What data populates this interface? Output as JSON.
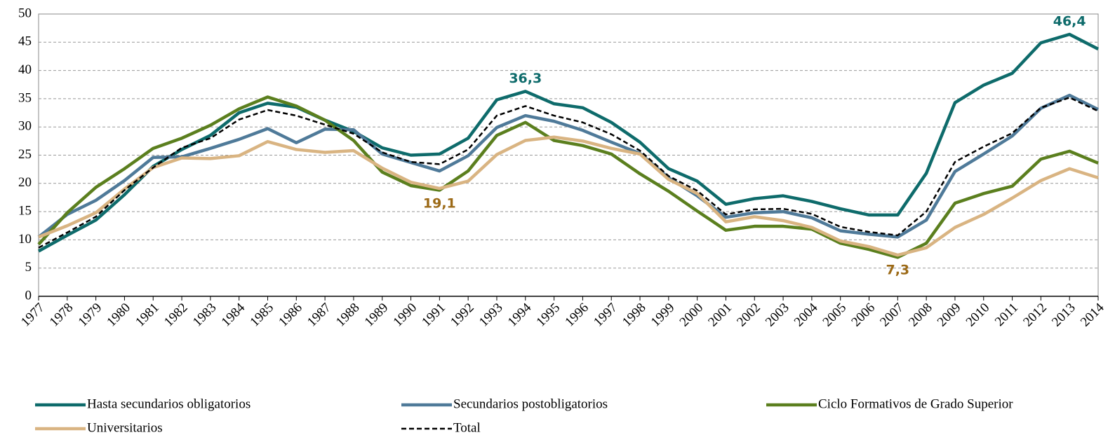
{
  "chart_data": {
    "type": "line",
    "x": [
      1977,
      1978,
      1979,
      1980,
      1981,
      1982,
      1983,
      1984,
      1985,
      1986,
      1987,
      1988,
      1989,
      1990,
      1991,
      1992,
      1993,
      1994,
      1995,
      1996,
      1997,
      1998,
      1999,
      2000,
      2001,
      2002,
      2003,
      2004,
      2005,
      2006,
      2007,
      2008,
      2009,
      2010,
      2011,
      2012,
      2013,
      2014
    ],
    "xlim": [
      1977,
      2014
    ],
    "ylim": [
      0,
      50
    ],
    "yticks": [
      0,
      5,
      10,
      15,
      20,
      25,
      30,
      35,
      40,
      45,
      50
    ],
    "grid": true,
    "legend": "bottom",
    "series": [
      {
        "name": "Hasta secundarios obligatorios",
        "color": "#0e6b6b",
        "values": [
          8,
          10.8,
          13.5,
          18,
          23,
          26,
          28.5,
          32.5,
          34.2,
          33.5,
          31.2,
          29.2,
          26.3,
          25,
          25.2,
          28,
          34.8,
          36.3,
          34.1,
          33.4,
          30.8,
          27.3,
          22.6,
          20.4,
          16.3,
          17.3,
          17.8,
          16.8,
          15.5,
          14.4,
          14.4,
          21.8,
          34.3,
          37.4,
          39.5,
          44.9,
          46.4,
          43.8
        ],
        "value_labels": [
          null,
          null,
          null,
          null,
          null,
          null,
          null,
          null,
          null,
          null,
          null,
          null,
          null,
          null,
          null,
          null,
          null,
          "36,3",
          null,
          null,
          null,
          null,
          null,
          null,
          null,
          null,
          null,
          null,
          null,
          null,
          null,
          null,
          null,
          null,
          null,
          null,
          "46,4",
          null
        ],
        "label_color": "#0e6b6b"
      },
      {
        "name": "Secundarios postobligatorios",
        "color": "#4f7a99",
        "values": [
          10.5,
          14.5,
          17,
          20.5,
          24.6,
          24.7,
          26.2,
          27.8,
          29.7,
          27.2,
          29.6,
          29.5,
          25.2,
          23.7,
          22.2,
          24.9,
          29.9,
          32,
          31,
          29.4,
          27.3,
          25.3,
          21,
          17.8,
          14,
          14.8,
          15,
          13.9,
          11.6,
          11,
          10.5,
          13.5,
          22.1,
          25.2,
          28.4,
          33.3,
          35.6,
          33.1
        ]
      },
      {
        "name": "Ciclo Formativos de Grado Superior",
        "color": "#5b7f1e",
        "values": [
          9.2,
          14.8,
          19.3,
          22.6,
          26.2,
          28,
          30.3,
          33.2,
          35.3,
          33.7,
          31.2,
          27.6,
          22,
          19.6,
          18.8,
          22.2,
          28.5,
          30.8,
          27.6,
          26.7,
          25.2,
          21.7,
          18.6,
          15.1,
          11.7,
          12.4,
          12.4,
          11.9,
          9.4,
          8.3,
          6.9,
          9.4,
          16.5,
          18.2,
          19.5,
          24.3,
          25.7,
          23.6
        ]
      },
      {
        "name": "Universitarios",
        "color": "#d9b482",
        "values": [
          10.5,
          12.5,
          14.8,
          19,
          22.8,
          24.5,
          24.4,
          24.9,
          27.4,
          26,
          25.5,
          25.8,
          22.7,
          20.2,
          19.1,
          20.4,
          25.1,
          27.6,
          28.2,
          27.5,
          26.2,
          25.2,
          20.7,
          18.2,
          13.2,
          14.1,
          13.4,
          12.2,
          9.8,
          8.8,
          7.3,
          8.6,
          12.2,
          14.5,
          17.4,
          20.5,
          22.6,
          21
        ],
        "value_labels": [
          null,
          null,
          null,
          null,
          null,
          null,
          null,
          null,
          null,
          null,
          null,
          null,
          null,
          null,
          "19,1",
          null,
          null,
          null,
          null,
          null,
          null,
          null,
          null,
          null,
          null,
          null,
          null,
          null,
          null,
          null,
          "7,3",
          null,
          null,
          null,
          null,
          null,
          null,
          null
        ],
        "label_color": "#9c6a17"
      },
      {
        "name": "Total",
        "color": "#000000",
        "dash": "dashed",
        "values": [
          8.6,
          11.3,
          14.1,
          18.8,
          22.8,
          26.3,
          28,
          31.3,
          33,
          32,
          30.4,
          28.8,
          25.5,
          23.8,
          23.4,
          26,
          32,
          33.7,
          32,
          30.8,
          28.7,
          25.8,
          21.3,
          18.7,
          14.5,
          15.4,
          15.5,
          14.6,
          12.3,
          11.4,
          10.8,
          15,
          23.8,
          26.5,
          28.9,
          33.4,
          35.2,
          32.8
        ]
      }
    ]
  }
}
